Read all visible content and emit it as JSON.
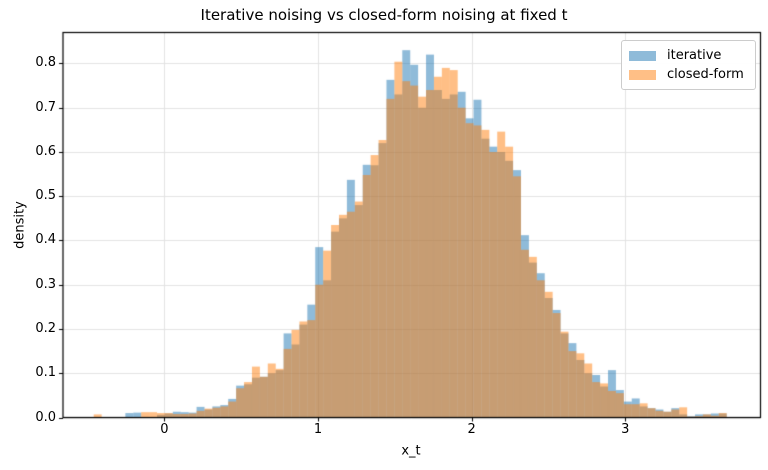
{
  "title": "Iterative noising vs closed-form noising at fixed t",
  "legend": {
    "items": [
      {
        "label": "iterative",
        "color": "rgba(31,119,180,0.5)"
      },
      {
        "label": "closed-form",
        "color": "rgba(255,127,14,0.5)"
      }
    ]
  },
  "chart_data": {
    "type": "histogram",
    "title": "Iterative noising vs closed-form noising at fixed t",
    "xlabel": "x_t",
    "ylabel": "density",
    "xlim": [
      -0.66,
      3.88
    ],
    "ylim": [
      0,
      0.87
    ],
    "xtick_values": [
      0,
      1,
      2,
      3
    ],
    "xtick_labels": [
      "0",
      "1",
      "2",
      "3"
    ],
    "ytick_values": [
      0.0,
      0.1,
      0.2,
      0.3,
      0.4,
      0.5,
      0.6,
      0.7,
      0.8
    ],
    "ytick_labels": [
      "0.0",
      "0.1",
      "0.2",
      "0.3",
      "0.4",
      "0.5",
      "0.6",
      "0.7",
      "0.8"
    ],
    "grid": true,
    "grid_color": "#e3e3e3",
    "spine_color": "#000000",
    "legend_position": "upper right",
    "bin_start": -0.46,
    "bin_width": 0.0515,
    "bin_count": 80,
    "series": [
      {
        "name": "iterative",
        "color": "rgba(31,119,180,0.5)",
        "values": [
          0,
          0,
          0,
          0,
          0.01,
          0.011,
          0,
          0,
          0.006,
          0.009,
          0.013,
          0.012,
          0.011,
          0.024,
          0.018,
          0.025,
          0.028,
          0.042,
          0.072,
          0.075,
          0.09,
          0.092,
          0.1,
          0.107,
          0.19,
          0.165,
          0.21,
          0.255,
          0.385,
          0.31,
          0.42,
          0.45,
          0.537,
          0.48,
          0.571,
          0.57,
          0.62,
          0.763,
          0.73,
          0.83,
          0.797,
          0.7,
          0.82,
          0.74,
          0.72,
          0.73,
          0.736,
          0.676,
          0.718,
          0.63,
          0.612,
          0.6,
          0.58,
          0.559,
          0.412,
          0.35,
          0.326,
          0.27,
          0.243,
          0.19,
          0.168,
          0.13,
          0.1,
          0.096,
          0.07,
          0.107,
          0.062,
          0.036,
          0.043,
          0.025,
          0.021,
          0.018,
          0.013,
          0.021,
          0.007,
          0.003,
          0.007,
          0.007,
          0.009,
          0.009
        ]
      },
      {
        "name": "closed-form",
        "color": "rgba(255,127,14,0.5)",
        "values": [
          0.007,
          0,
          0,
          0,
          0,
          0,
          0.012,
          0.012,
          0.01,
          0.01,
          0.008,
          0.008,
          0.009,
          0.015,
          0.02,
          0.022,
          0.025,
          0.036,
          0.066,
          0.08,
          0.115,
          0.092,
          0.122,
          0.11,
          0.155,
          0.198,
          0.217,
          0.22,
          0.3,
          0.377,
          0.435,
          0.458,
          0.465,
          0.488,
          0.548,
          0.593,
          0.627,
          0.72,
          0.804,
          0.76,
          0.75,
          0.725,
          0.74,
          0.77,
          0.79,
          0.785,
          0.7,
          0.665,
          0.66,
          0.65,
          0.6,
          0.646,
          0.612,
          0.545,
          0.379,
          0.363,
          0.31,
          0.284,
          0.236,
          0.194,
          0.15,
          0.145,
          0.122,
          0.08,
          0.077,
          0.06,
          0.055,
          0.03,
          0.03,
          0.032,
          0.021,
          0.015,
          0.013,
          0.018,
          0.023,
          0.002,
          0.003,
          0.007,
          0.004,
          0.01
        ]
      }
    ]
  }
}
